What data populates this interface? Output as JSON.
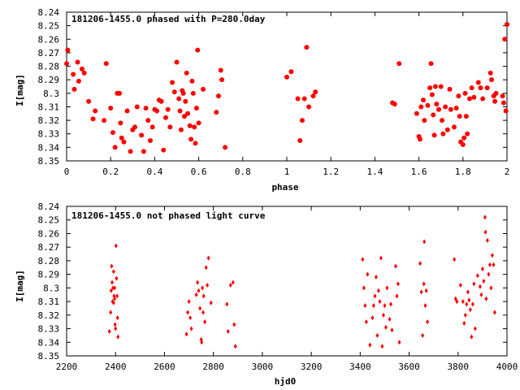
{
  "chart_data": [
    {
      "type": "scatter",
      "title": "181206-1455.0 phased with P=280.0day",
      "xlabel": "phase",
      "ylabel": "I[mag]",
      "xlim": [
        0,
        2
      ],
      "ylim": [
        8.35,
        8.24
      ],
      "y_inverted": true,
      "marker": "filled-circle",
      "marker_color": "#ff0000",
      "grid": false,
      "x_ticks": [
        "0",
        "0.2",
        "0.4",
        "0.6",
        "0.8",
        "1",
        "1.2",
        "1.4",
        "1.6",
        "1.8",
        "2"
      ],
      "y_ticks": [
        "8.24",
        "8.25",
        "8.26",
        "8.27",
        "8.28",
        "8.29",
        "8.3",
        "8.31",
        "8.32",
        "8.33",
        "8.34",
        "8.35"
      ],
      "series": [
        {
          "points": [
            [
              0.0,
              8.278
            ],
            [
              0.005,
              8.268
            ],
            [
              0.03,
              8.286
            ],
            [
              0.035,
              8.297
            ],
            [
              0.05,
              8.277
            ],
            [
              0.055,
              8.291
            ],
            [
              0.07,
              8.282
            ],
            [
              0.08,
              8.285
            ],
            [
              0.1,
              8.306
            ],
            [
              0.12,
              8.319
            ],
            [
              0.13,
              8.313
            ],
            [
              0.17,
              8.32
            ],
            [
              0.18,
              8.278
            ],
            [
              0.2,
              8.311
            ],
            [
              0.21,
              8.329
            ],
            [
              0.22,
              8.34
            ],
            [
              0.23,
              8.3
            ],
            [
              0.24,
              8.3
            ],
            [
              0.245,
              8.322
            ],
            [
              0.25,
              8.333
            ],
            [
              0.26,
              8.336
            ],
            [
              0.275,
              8.313
            ],
            [
              0.29,
              8.343
            ],
            [
              0.3,
              8.327
            ],
            [
              0.31,
              8.325
            ],
            [
              0.32,
              8.31
            ],
            [
              0.34,
              8.331
            ],
            [
              0.35,
              8.343
            ],
            [
              0.36,
              8.311
            ],
            [
              0.37,
              8.32
            ],
            [
              0.38,
              8.335
            ],
            [
              0.39,
              8.325
            ],
            [
              0.4,
              8.312
            ],
            [
              0.41,
              8.313
            ],
            [
              0.42,
              8.305
            ],
            [
              0.43,
              8.306
            ],
            [
              0.44,
              8.342
            ],
            [
              0.45,
              8.318
            ],
            [
              0.46,
              8.312
            ],
            [
              0.47,
              8.325
            ],
            [
              0.48,
              8.292
            ],
            [
              0.49,
              8.299
            ],
            [
              0.5,
              8.277
            ],
            [
              0.51,
              8.304
            ],
            [
              0.515,
              8.313
            ],
            [
              0.52,
              8.327
            ],
            [
              0.525,
              8.298
            ],
            [
              0.53,
              8.3
            ],
            [
              0.535,
              8.317
            ],
            [
              0.54,
              8.306
            ],
            [
              0.545,
              8.285
            ],
            [
              0.55,
              8.315
            ],
            [
              0.56,
              8.324
            ],
            [
              0.565,
              8.334
            ],
            [
              0.57,
              8.291
            ],
            [
              0.575,
              8.3
            ],
            [
              0.58,
              8.325
            ],
            [
              0.585,
              8.337
            ],
            [
              0.59,
              8.311
            ],
            [
              0.595,
              8.268
            ],
            [
              0.6,
              8.322
            ],
            [
              0.62,
              8.297
            ],
            [
              0.68,
              8.314
            ],
            [
              0.69,
              8.302
            ],
            [
              0.7,
              8.283
            ],
            [
              0.705,
              8.29
            ],
            [
              0.72,
              8.34
            ],
            [
              1.0,
              8.288
            ],
            [
              1.02,
              8.284
            ],
            [
              1.05,
              8.304
            ],
            [
              1.06,
              8.335
            ],
            [
              1.07,
              8.32
            ],
            [
              1.08,
              8.304
            ],
            [
              1.09,
              8.266
            ],
            [
              1.1,
              8.31
            ],
            [
              1.12,
              8.302
            ],
            [
              1.13,
              8.299
            ],
            [
              1.48,
              8.307
            ],
            [
              1.49,
              8.308
            ],
            [
              1.51,
              8.278
            ],
            [
              1.59,
              8.315
            ],
            [
              1.6,
              8.332
            ],
            [
              1.605,
              8.334
            ],
            [
              1.61,
              8.31
            ],
            [
              1.62,
              8.305
            ],
            [
              1.625,
              8.32
            ],
            [
              1.64,
              8.309
            ],
            [
              1.65,
              8.296
            ],
            [
              1.655,
              8.278
            ],
            [
              1.66,
              8.301
            ],
            [
              1.665,
              8.316
            ],
            [
              1.67,
              8.331
            ],
            [
              1.675,
              8.295
            ],
            [
              1.68,
              8.308
            ],
            [
              1.69,
              8.312
            ],
            [
              1.7,
              8.295
            ],
            [
              1.705,
              8.32
            ],
            [
              1.71,
              8.33
            ],
            [
              1.72,
              8.31
            ],
            [
              1.73,
              8.327
            ],
            [
              1.74,
              8.297
            ],
            [
              1.745,
              8.312
            ],
            [
              1.76,
              8.325
            ],
            [
              1.77,
              8.311
            ],
            [
              1.78,
              8.302
            ],
            [
              1.785,
              8.317
            ],
            [
              1.79,
              8.336
            ],
            [
              1.8,
              8.338
            ],
            [
              1.805,
              8.333
            ],
            [
              1.81,
              8.3
            ],
            [
              1.815,
              8.317
            ],
            [
              1.82,
              8.33
            ],
            [
              1.83,
              8.304
            ],
            [
              1.84,
              8.296
            ],
            [
              1.85,
              8.303
            ],
            [
              1.87,
              8.292
            ],
            [
              1.88,
              8.296
            ],
            [
              1.89,
              8.304
            ],
            [
              1.91,
              8.296
            ],
            [
              1.925,
              8.285
            ],
            [
              1.93,
              8.29
            ],
            [
              1.94,
              8.302
            ],
            [
              1.945,
              8.306
            ],
            [
              1.95,
              8.3
            ],
            [
              1.98,
              8.302
            ],
            [
              1.985,
              8.307
            ],
            [
              1.99,
              8.26
            ],
            [
              1.995,
              8.313
            ],
            [
              2.0,
              8.249
            ]
          ]
        }
      ]
    },
    {
      "type": "scatter",
      "title": "181206-1455.0 not phased light curve",
      "xlabel": "hjd0",
      "ylabel": "I[mag]",
      "xlim": [
        2200,
        4000
      ],
      "ylim": [
        8.35,
        8.24
      ],
      "y_inverted": true,
      "marker": "small-diamond",
      "marker_color": "#ff0000",
      "grid": false,
      "x_ticks": [
        "2200",
        "2400",
        "2600",
        "2800",
        "3000",
        "3200",
        "3400",
        "3600",
        "3800",
        "4000"
      ],
      "y_ticks": [
        "8.24",
        "8.25",
        "8.26",
        "8.27",
        "8.28",
        "8.29",
        "8.3",
        "8.31",
        "8.32",
        "8.33",
        "8.34",
        "8.35"
      ],
      "series": [
        {
          "points": [
            [
              2375,
              8.332
            ],
            [
              2380,
              8.318
            ],
            [
              2382,
              8.302
            ],
            [
              2384,
              8.284
            ],
            [
              2386,
              8.296
            ],
            [
              2388,
              8.31
            ],
            [
              2390,
              8.3
            ],
            [
              2392,
              8.288
            ],
            [
              2394,
              8.306
            ],
            [
              2396,
              8.308
            ],
            [
              2398,
              8.327
            ],
            [
              2400,
              8.33
            ],
            [
              2402,
              8.269
            ],
            [
              2404,
              8.293
            ],
            [
              2406,
              8.306
            ],
            [
              2408,
              8.322
            ],
            [
              2410,
              8.336
            ],
            [
              2396,
              8.3
            ],
            [
              2392,
              8.311
            ],
            [
              2690,
              8.334
            ],
            [
              2695,
              8.318
            ],
            [
              2700,
              8.31
            ],
            [
              2705,
              8.322
            ],
            [
              2710,
              8.33
            ],
            [
              2730,
              8.305
            ],
            [
              2735,
              8.296
            ],
            [
              2740,
              8.302
            ],
            [
              2745,
              8.315
            ],
            [
              2750,
              8.338
            ],
            [
              2752,
              8.34
            ],
            [
              2755,
              8.3
            ],
            [
              2758,
              8.318
            ],
            [
              2760,
              8.306
            ],
            [
              2765,
              8.325
            ],
            [
              2770,
              8.285
            ],
            [
              2775,
              8.298
            ],
            [
              2780,
              8.278
            ],
            [
              2790,
              8.311
            ],
            [
              2855,
              8.312
            ],
            [
              2860,
              8.332
            ],
            [
              2870,
              8.298
            ],
            [
              2880,
              8.296
            ],
            [
              2885,
              8.327
            ],
            [
              2890,
              8.343
            ],
            [
              3410,
              8.279
            ],
            [
              3415,
              8.3
            ],
            [
              3420,
              8.313
            ],
            [
              3425,
              8.325
            ],
            [
              3430,
              8.29
            ],
            [
              3440,
              8.342
            ],
            [
              3450,
              8.322
            ],
            [
              3455,
              8.313
            ],
            [
              3460,
              8.306
            ],
            [
              3465,
              8.292
            ],
            [
              3470,
              8.335
            ],
            [
              3475,
              8.302
            ],
            [
              3480,
              8.31
            ],
            [
              3485,
              8.278
            ],
            [
              3490,
              8.343
            ],
            [
              3495,
              8.32
            ],
            [
              3500,
              8.313
            ],
            [
              3505,
              8.329
            ],
            [
              3510,
              8.3
            ],
            [
              3520,
              8.323
            ],
            [
              3525,
              8.312
            ],
            [
              3530,
              8.331
            ],
            [
              3545,
              8.284
            ],
            [
              3550,
              8.306
            ],
            [
              3555,
              8.297
            ],
            [
              3560,
              8.34
            ],
            [
              3645,
              8.282
            ],
            [
              3650,
              8.303
            ],
            [
              3655,
              8.335
            ],
            [
              3660,
              8.297
            ],
            [
              3662,
              8.266
            ],
            [
              3666,
              8.313
            ],
            [
              3670,
              8.302
            ],
            [
              3675,
              8.325
            ],
            [
              3785,
              8.279
            ],
            [
              3790,
              8.308
            ],
            [
              3795,
              8.31
            ],
            [
              3810,
              8.298
            ],
            [
              3820,
              8.31
            ],
            [
              3825,
              8.326
            ],
            [
              3830,
              8.32
            ],
            [
              3835,
              8.312
            ],
            [
              3840,
              8.303
            ],
            [
              3845,
              8.309
            ],
            [
              3850,
              8.316
            ],
            [
              3855,
              8.336
            ],
            [
              3860,
              8.312
            ],
            [
              3865,
              8.297
            ],
            [
              3870,
              8.33
            ],
            [
              3880,
              8.291
            ],
            [
              3890,
              8.299
            ],
            [
              3895,
              8.305
            ],
            [
              3900,
              8.286
            ],
            [
              3905,
              8.295
            ],
            [
              3910,
              8.248
            ],
            [
              3912,
              8.259
            ],
            [
              3915,
              8.308
            ],
            [
              3920,
              8.265
            ],
            [
              3925,
              8.29
            ],
            [
              3930,
              8.283
            ],
            [
              3935,
              8.3
            ],
            [
              3940,
              8.276
            ],
            [
              3945,
              8.283
            ],
            [
              3950,
              8.318
            ]
          ]
        }
      ]
    }
  ]
}
